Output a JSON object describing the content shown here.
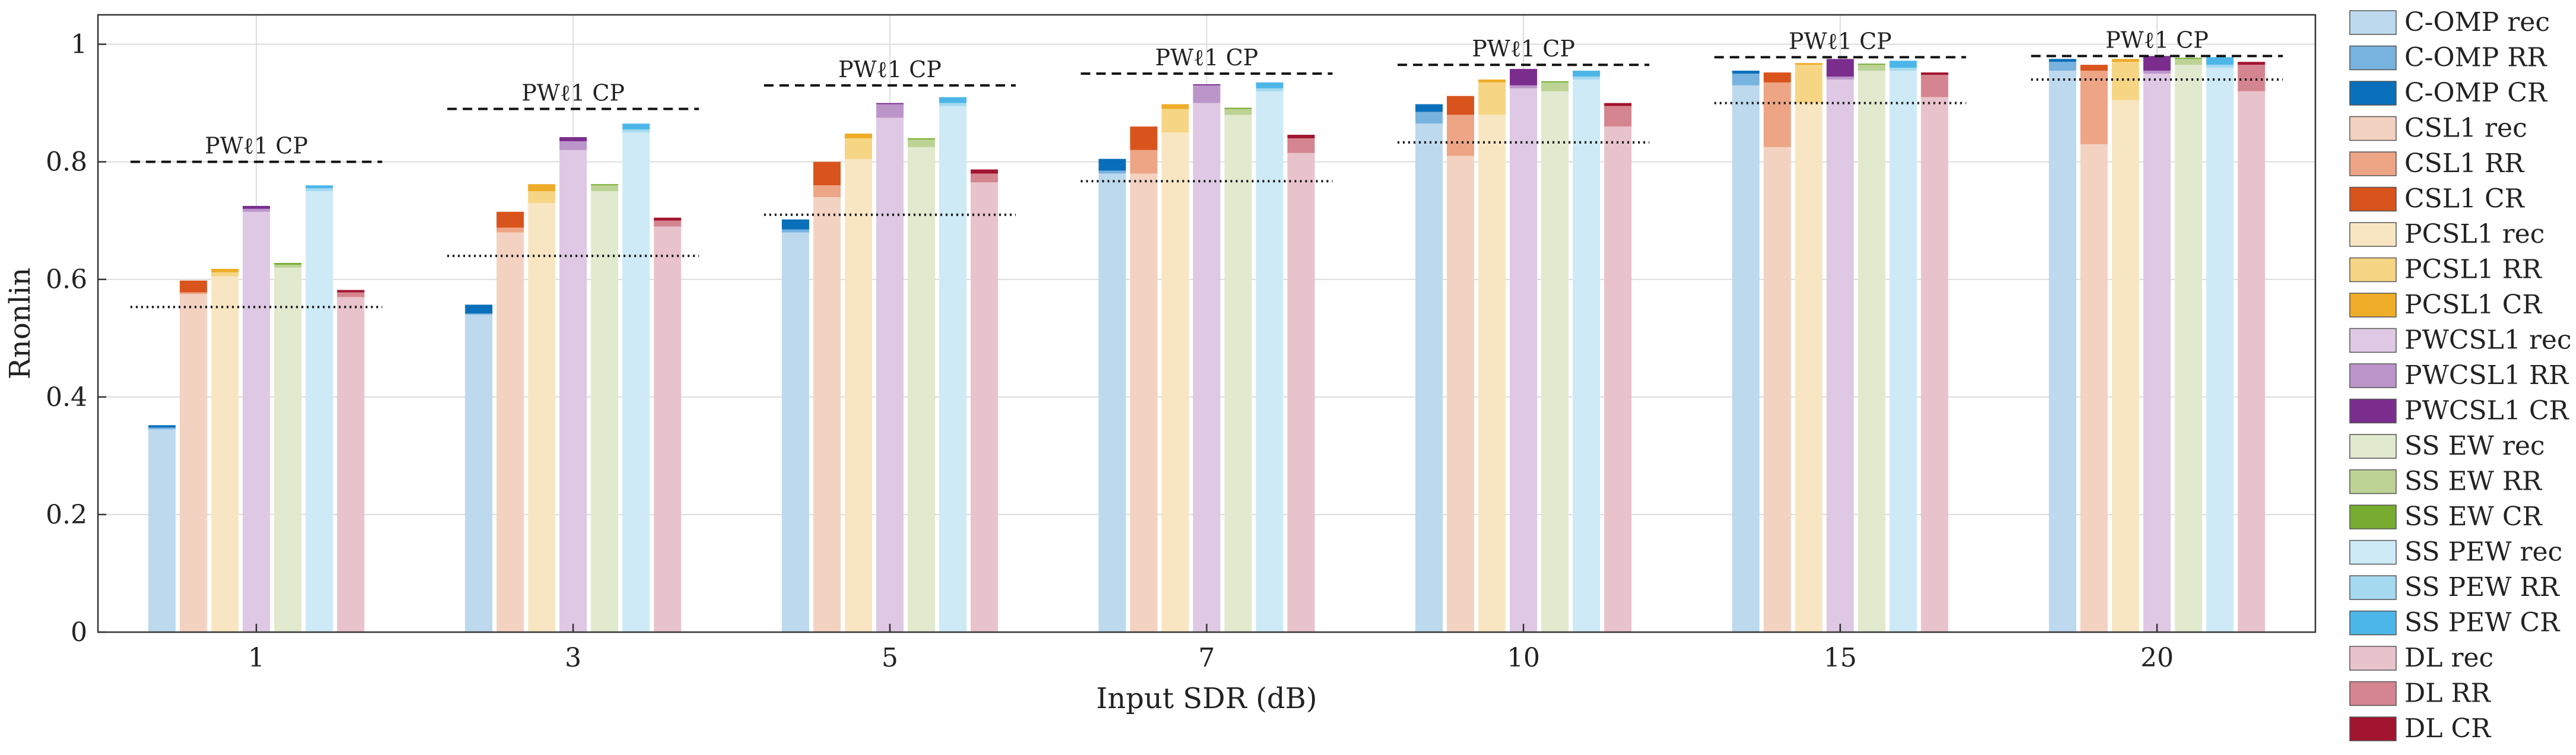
{
  "chart_data": {
    "type": "bar",
    "xlabel": "Input SDR (dB)",
    "ylabel": "Rnonlin",
    "ylim": [
      0,
      1
    ],
    "yticks": [
      "0",
      "0.2",
      "0.4",
      "0.6",
      "0.8",
      "1"
    ],
    "grid": true,
    "legend_position": "right",
    "categories": [
      "1",
      "3",
      "5",
      "7",
      "10",
      "15",
      "20"
    ],
    "cp_label": "PWℓ1 CP",
    "series": [
      {
        "name": "C-OMP",
        "color": "#0a6fba",
        "rec_color": "#bcd9ee",
        "rr_color": "#78b2df",
        "rec": [
          0.345,
          0.54,
          0.68,
          0.78,
          0.865,
          0.93,
          0.955
        ],
        "rr": [
          0.348,
          0.542,
          0.685,
          0.785,
          0.885,
          0.95,
          0.97
        ],
        "cr": [
          0.352,
          0.557,
          0.702,
          0.805,
          0.898,
          0.955,
          0.975
        ]
      },
      {
        "name": "CSL1",
        "color": "#d9541c",
        "rec_color": "#f3d2c2",
        "rr_color": "#eda586",
        "rec": [
          0.575,
          0.68,
          0.74,
          0.78,
          0.81,
          0.825,
          0.83
        ],
        "rr": [
          0.578,
          0.688,
          0.76,
          0.82,
          0.88,
          0.935,
          0.955
        ],
        "cr": [
          0.598,
          0.715,
          0.8,
          0.86,
          0.912,
          0.952,
          0.965
        ]
      },
      {
        "name": "PCSL1",
        "color": "#eeac28",
        "rec_color": "#f8e6c3",
        "rr_color": "#f6d585",
        "rec": [
          0.605,
          0.73,
          0.805,
          0.85,
          0.88,
          0.9,
          0.905
        ],
        "rr": [
          0.612,
          0.75,
          0.84,
          0.89,
          0.935,
          0.965,
          0.97
        ],
        "cr": [
          0.618,
          0.762,
          0.848,
          0.898,
          0.94,
          0.968,
          0.975
        ]
      },
      {
        "name": "PWCSL1",
        "color": "#7b2d8e",
        "rec_color": "#dec8e3",
        "rr_color": "#bb95ca",
        "rec": [
          0.715,
          0.82,
          0.875,
          0.9,
          0.925,
          0.94,
          0.95
        ],
        "rr": [
          0.72,
          0.835,
          0.898,
          0.93,
          0.93,
          0.945,
          0.955
        ],
        "cr": [
          0.725,
          0.842,
          0.9,
          0.932,
          0.958,
          0.975,
          0.98
        ]
      },
      {
        "name": "SS EW",
        "color": "#77ac30",
        "rec_color": "#e1e9cf",
        "rr_color": "#bcd395",
        "rec": [
          0.62,
          0.75,
          0.825,
          0.88,
          0.92,
          0.955,
          0.965
        ],
        "rr": [
          0.625,
          0.76,
          0.838,
          0.89,
          0.935,
          0.965,
          0.975
        ],
        "cr": [
          0.628,
          0.762,
          0.84,
          0.892,
          0.937,
          0.967,
          0.977
        ]
      },
      {
        "name": "SS PEW",
        "color": "#4db6e8",
        "rec_color": "#cdeaf6",
        "rr_color": "#a5d9f0",
        "rec": [
          0.75,
          0.85,
          0.895,
          0.92,
          0.94,
          0.955,
          0.96
        ],
        "rr": [
          0.755,
          0.855,
          0.9,
          0.925,
          0.945,
          0.96,
          0.965
        ],
        "cr": [
          0.76,
          0.865,
          0.91,
          0.935,
          0.955,
          0.972,
          0.978
        ]
      },
      {
        "name": "DL",
        "color": "#a2142f",
        "rec_color": "#e9c3cb",
        "rr_color": "#d5858f",
        "rec": [
          0.57,
          0.69,
          0.765,
          0.815,
          0.86,
          0.91,
          0.92
        ],
        "rr": [
          0.578,
          0.7,
          0.78,
          0.84,
          0.895,
          0.948,
          0.965
        ],
        "cr": [
          0.582,
          0.705,
          0.787,
          0.846,
          0.9,
          0.952,
          0.97
        ]
      }
    ],
    "cp_dashed": [
      0.8,
      0.89,
      0.93,
      0.95,
      0.965,
      0.978,
      0.98
    ],
    "cp_dotted": [
      0.553,
      0.64,
      0.71,
      0.767,
      0.833,
      0.9,
      0.94
    ],
    "legend": [
      {
        "label": "C-OMP rec",
        "color": "#bcd9ee"
      },
      {
        "label": "C-OMP RR",
        "color": "#78b2df"
      },
      {
        "label": "C-OMP CR",
        "color": "#0a6fba"
      },
      {
        "label": "CSL1 rec",
        "color": "#f3d2c2"
      },
      {
        "label": "CSL1 RR",
        "color": "#eda586"
      },
      {
        "label": "CSL1 CR",
        "color": "#d9541c"
      },
      {
        "label": "PCSL1 rec",
        "color": "#f8e6c3"
      },
      {
        "label": "PCSL1 RR",
        "color": "#f6d585"
      },
      {
        "label": "PCSL1 CR",
        "color": "#eeac28"
      },
      {
        "label": "PWCSL1 rec",
        "color": "#dec8e3"
      },
      {
        "label": "PWCSL1 RR",
        "color": "#bb95ca"
      },
      {
        "label": "PWCSL1 CR",
        "color": "#7b2d8e"
      },
      {
        "label": "SS EW rec",
        "color": "#e1e9cf"
      },
      {
        "label": "SS EW RR",
        "color": "#bcd395"
      },
      {
        "label": "SS EW CR",
        "color": "#77ac30"
      },
      {
        "label": "SS PEW rec",
        "color": "#cdeaf6"
      },
      {
        "label": "SS PEW RR",
        "color": "#a5d9f0"
      },
      {
        "label": "SS PEW CR",
        "color": "#4db6e8"
      },
      {
        "label": "DL rec",
        "color": "#e9c3cb"
      },
      {
        "label": "DL RR",
        "color": "#d5858f"
      },
      {
        "label": "DL CR",
        "color": "#a2142f"
      }
    ]
  }
}
